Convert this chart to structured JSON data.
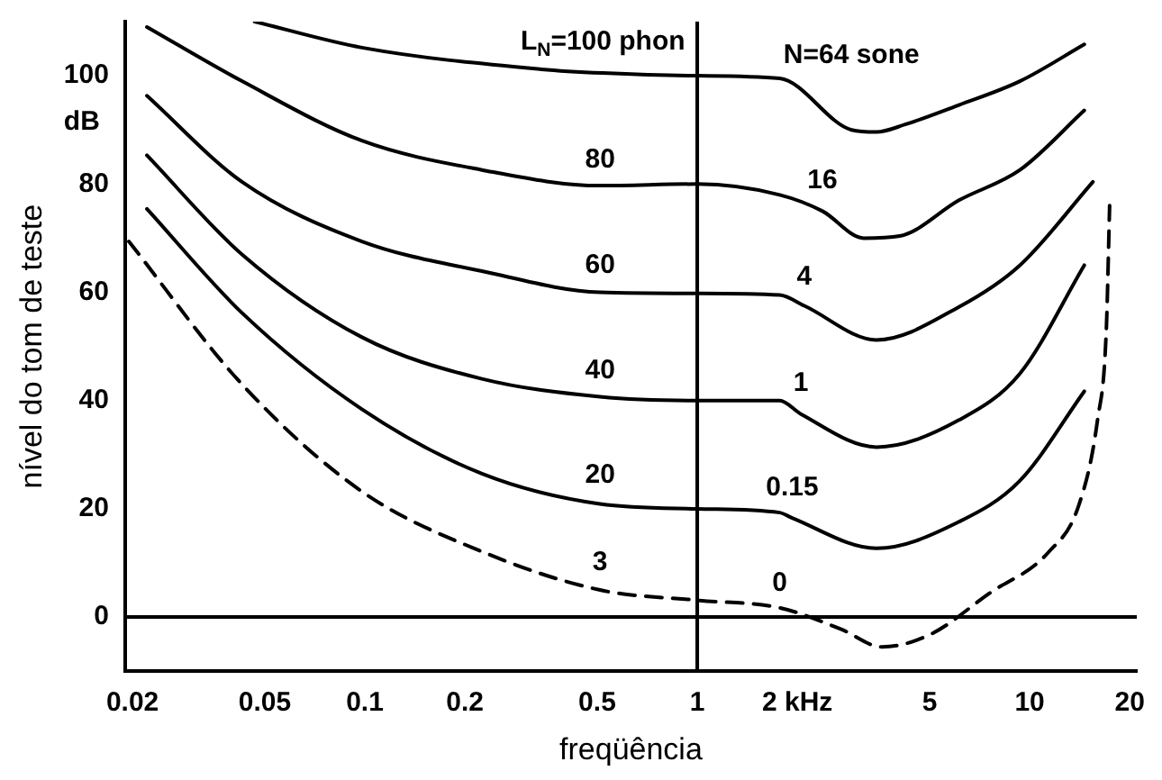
{
  "chart_data": {
    "type": "line",
    "xlabel": "freqüência",
    "ylabel": "nível do tom de teste",
    "log": "x",
    "xlim": [
      0.019,
      21
    ],
    "ylim": [
      -10,
      110
    ],
    "xticks": [
      0.02,
      0.05,
      0.1,
      0.2,
      0.5,
      1,
      {
        "value": 2,
        "label": "2 kHz"
      },
      5,
      10,
      20
    ],
    "yticks": [
      0,
      20,
      40,
      60,
      80,
      100
    ],
    "grid": false,
    "legend": false,
    "marker": "none",
    "series": [
      {
        "color": "#000000",
        "line_style": "solid",
        "x": [
          0.0466,
          0.098,
          0.34,
          0.52,
          1,
          1.77,
          2.91,
          3.46,
          4.22,
          6.13,
          9.35,
          14.6
        ],
        "values": [
          110,
          105.2,
          101.2,
          100.5,
          100,
          99.5,
          90,
          89.6,
          91,
          94.6,
          99,
          105.8
        ]
      },
      {
        "color": "#000000",
        "line_style": "solid",
        "x": [
          0.0221,
          0.0427,
          0.098,
          0.225,
          0.51,
          1,
          1.77,
          2.38,
          3.17,
          4.07,
          6.13,
          9.35,
          14.6
        ],
        "values": [
          109,
          99,
          88,
          82.6,
          79.7,
          80,
          78,
          75,
          70,
          70.4,
          77,
          82.6,
          93.6
        ]
      },
      {
        "color": "#000000",
        "line_style": "solid",
        "x": [
          0.0221,
          0.0427,
          0.098,
          0.225,
          0.51,
          1,
          1.77,
          2.1,
          3.46,
          6.13,
          9.35,
          15.5
        ],
        "values": [
          96.3,
          80.4,
          69.4,
          63.9,
          60,
          59.8,
          59.5,
          57.5,
          51.2,
          57.3,
          65,
          80.4
        ]
      },
      {
        "color": "#000000",
        "line_style": "solid",
        "x": [
          0.0221,
          0.0427,
          0.098,
          0.225,
          0.51,
          1,
          1.77,
          2.05,
          3.46,
          6.13,
          9.35,
          14.6
        ],
        "values": [
          85.3,
          67,
          51.7,
          44,
          40.7,
          40,
          40,
          37.5,
          31.4,
          36.4,
          45,
          65
        ]
      },
      {
        "color": "#000000",
        "line_style": "solid",
        "x": [
          0.0221,
          0.0427,
          0.098,
          0.225,
          0.51,
          1,
          1.77,
          1.93,
          3.46,
          6.13,
          9.35,
          14.6
        ],
        "values": [
          75.4,
          56.2,
          38.4,
          26.5,
          20.9,
          20,
          19.3,
          18.3,
          12.7,
          17.6,
          25.2,
          41.7
        ]
      },
      {
        "color": "#000000",
        "line_style": "dashed",
        "x": [
          0.0195,
          0.0427,
          0.098,
          0.225,
          0.51,
          1,
          1.77,
          2.7,
          3.59,
          5.03,
          7.57,
          11.4,
          14.1,
          16,
          17,
          17.4
        ],
        "values": [
          69.4,
          43,
          23.2,
          12.1,
          5,
          3.1,
          1.7,
          -2.2,
          -5.5,
          -3.2,
          4.4,
          12,
          20.9,
          36.4,
          52.9,
          76
        ]
      }
    ],
    "ref_lines": [
      {
        "axis": "y",
        "value": 0,
        "color": "#000000"
      },
      {
        "axis": "x",
        "value": 1,
        "color": "#000000"
      }
    ],
    "annotations": [
      "dB",
      {
        "text": "L$_{N}$=100 phon",
        "x": 0.52,
        "y": 100.5
      },
      {
        "text": "N=64 sone",
        "x": 2.91,
        "y": 90
      },
      {
        "text": "80",
        "x": 0.51,
        "y": 79.7
      },
      {
        "text": "60",
        "x": 0.51,
        "y": 60
      },
      {
        "text": "40",
        "x": 0.51,
        "y": 40.7
      },
      {
        "text": "20",
        "x": 0.51,
        "y": 20.9
      },
      {
        "text": "3",
        "x": 0.51,
        "y": 5
      },
      {
        "text": "16",
        "x": 2.38,
        "y": 75
      },
      {
        "text": "4",
        "x": 2.1,
        "y": 57.5
      },
      {
        "text": "1",
        "x": 2.05,
        "y": 37.5
      },
      {
        "text": "0.15",
        "x": 1.93,
        "y": 18.3
      },
      {
        "text": "0",
        "x": 1.77,
        "y": 1.7
      }
    ]
  }
}
